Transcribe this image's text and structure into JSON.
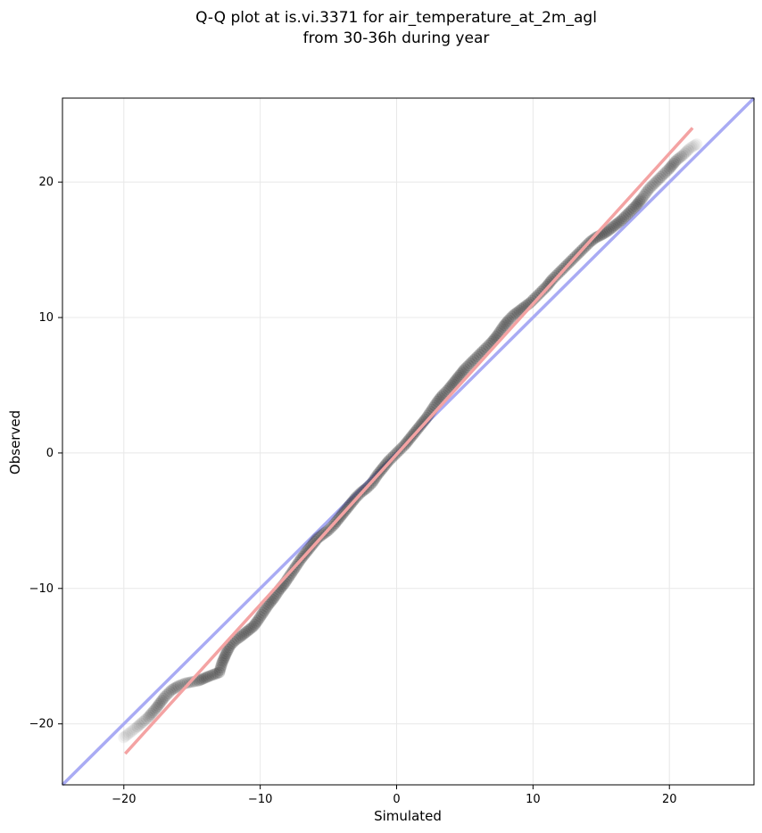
{
  "chart_data": {
    "type": "scatter",
    "title": [
      "Q-Q plot at is.vi.3371 for air_temperature_at_2m_agl",
      "from 30-36h during year"
    ],
    "xlabel": "Simulated",
    "ylabel": "Observed",
    "xlim": [
      -24.5,
      26.2
    ],
    "ylim": [
      -24.5,
      26.2
    ],
    "x_ticks": [
      -20,
      -10,
      0,
      10,
      20
    ],
    "y_ticks": [
      -20,
      -10,
      0,
      10,
      20
    ],
    "x_tick_labels": [
      "−20",
      "−10",
      "0",
      "10",
      "20"
    ],
    "y_tick_labels": [
      "−20",
      "−10",
      "0",
      "10",
      "20"
    ],
    "grid": true,
    "series": [
      {
        "kind": "quantile-points",
        "color": "#333333",
        "points": [
          [
            -20.0,
            -21.0
          ],
          [
            -19.0,
            -20.2
          ],
          [
            -18.2,
            -19.5
          ],
          [
            -17.6,
            -18.8
          ],
          [
            -17.0,
            -18.0
          ],
          [
            -16.5,
            -17.5
          ],
          [
            -16.0,
            -17.2
          ],
          [
            -15.5,
            -17.0
          ],
          [
            -14.5,
            -16.8
          ],
          [
            -13.8,
            -16.5
          ],
          [
            -13.0,
            -16.2
          ],
          [
            -12.8,
            -15.5
          ],
          [
            -12.5,
            -14.8
          ],
          [
            -12.2,
            -14.2
          ],
          [
            -11.8,
            -13.8
          ],
          [
            -11.5,
            -13.6
          ],
          [
            -11.0,
            -13.2
          ],
          [
            -10.5,
            -12.8
          ],
          [
            -10.2,
            -12.4
          ],
          [
            -9.8,
            -11.8
          ],
          [
            -9.4,
            -11.2
          ],
          [
            -9.0,
            -10.7
          ],
          [
            -8.6,
            -10.1
          ],
          [
            -8.2,
            -9.6
          ],
          [
            -7.8,
            -9.0
          ],
          [
            -7.4,
            -8.4
          ],
          [
            -7.0,
            -7.8
          ],
          [
            -6.6,
            -7.3
          ],
          [
            -6.2,
            -6.8
          ],
          [
            -5.8,
            -6.3
          ],
          [
            -5.4,
            -6.0
          ],
          [
            -5.0,
            -5.7
          ],
          [
            -4.6,
            -5.3
          ],
          [
            -4.2,
            -4.8
          ],
          [
            -3.8,
            -4.3
          ],
          [
            -3.4,
            -3.8
          ],
          [
            -3.0,
            -3.3
          ],
          [
            -2.6,
            -2.9
          ],
          [
            -2.2,
            -2.6
          ],
          [
            -1.8,
            -2.2
          ],
          [
            -1.4,
            -1.6
          ],
          [
            -1.0,
            -1.1
          ],
          [
            -0.6,
            -0.6
          ],
          [
            -0.2,
            -0.2
          ],
          [
            0.2,
            0.2
          ],
          [
            0.6,
            0.6
          ],
          [
            1.0,
            1.1
          ],
          [
            1.4,
            1.6
          ],
          [
            1.8,
            2.1
          ],
          [
            2.2,
            2.6
          ],
          [
            2.6,
            3.2
          ],
          [
            3.0,
            3.8
          ],
          [
            3.4,
            4.3
          ],
          [
            3.8,
            4.7
          ],
          [
            4.2,
            5.2
          ],
          [
            4.6,
            5.7
          ],
          [
            5.0,
            6.2
          ],
          [
            5.4,
            6.6
          ],
          [
            5.8,
            7.0
          ],
          [
            6.2,
            7.4
          ],
          [
            6.6,
            7.8
          ],
          [
            7.0,
            8.2
          ],
          [
            7.4,
            8.7
          ],
          [
            7.8,
            9.3
          ],
          [
            8.2,
            9.8
          ],
          [
            8.6,
            10.2
          ],
          [
            9.0,
            10.5
          ],
          [
            9.4,
            10.8
          ],
          [
            9.8,
            11.1
          ],
          [
            10.2,
            11.5
          ],
          [
            10.6,
            11.9
          ],
          [
            11.0,
            12.3
          ],
          [
            11.4,
            12.8
          ],
          [
            11.8,
            13.2
          ],
          [
            12.2,
            13.6
          ],
          [
            12.6,
            14.0
          ],
          [
            13.0,
            14.4
          ],
          [
            13.4,
            14.8
          ],
          [
            13.8,
            15.2
          ],
          [
            14.2,
            15.6
          ],
          [
            14.6,
            15.9
          ],
          [
            15.0,
            16.1
          ],
          [
            15.5,
            16.4
          ],
          [
            16.0,
            16.8
          ],
          [
            16.5,
            17.2
          ],
          [
            17.0,
            17.7
          ],
          [
            17.5,
            18.2
          ],
          [
            18.0,
            18.8
          ],
          [
            18.5,
            19.5
          ],
          [
            19.0,
            20.0
          ],
          [
            19.5,
            20.5
          ],
          [
            20.0,
            21.0
          ],
          [
            20.5,
            21.6
          ],
          [
            21.0,
            22.0
          ],
          [
            21.5,
            22.5
          ],
          [
            22.0,
            22.8
          ]
        ]
      },
      {
        "kind": "fit-line",
        "color": "#f4a3a3",
        "points": [
          [
            -19.9,
            -22.2
          ],
          [
            21.7,
            24.0
          ]
        ]
      },
      {
        "kind": "identity-line",
        "color": "#a9abf4",
        "points": [
          [
            -24.5,
            -24.5
          ],
          [
            26.2,
            26.2
          ]
        ]
      }
    ]
  }
}
